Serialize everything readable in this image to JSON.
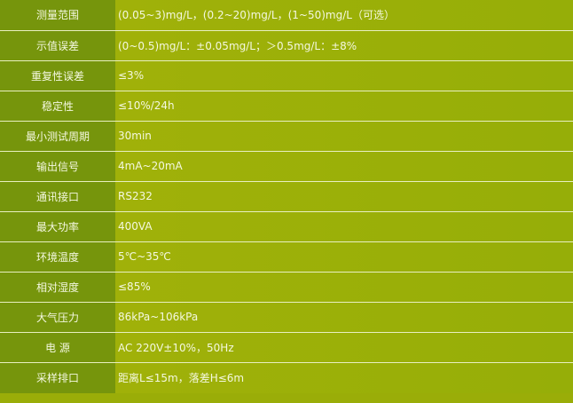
{
  "colors": {
    "label_bg": "#76950c",
    "value_bg": "#9aad08",
    "text": "#f4f8e0"
  },
  "specs": [
    {
      "label": "测量范围",
      "value": "(0.05~3)mg/L，(0.2~20)mg/L，(1~50)mg/L（可选）"
    },
    {
      "label": "示值误差",
      "value": "(0~0.5)mg/L：±0.05mg/L；＞0.5mg/L：±8%"
    },
    {
      "label": "重复性误差",
      "value": "≤3%"
    },
    {
      "label": "稳定性",
      "value": "≤10%/24h"
    },
    {
      "label": "最小测试周期",
      "value": "30min"
    },
    {
      "label": "输出信号",
      "value": "4mA~20mA"
    },
    {
      "label": "通讯接口",
      "value": "RS232"
    },
    {
      "label": "最大功率",
      "value": "400VA"
    },
    {
      "label": "环境温度",
      "value": "5℃~35℃"
    },
    {
      "label": "相对湿度",
      "value": "≤85%"
    },
    {
      "label": "大气压力",
      "value": "86kPa~106kPa"
    },
    {
      "label": "电 源",
      "value": "AC 220V±10%，50Hz"
    },
    {
      "label": "采样排口",
      "value": "距离L≤15m，落差H≤6m"
    }
  ]
}
